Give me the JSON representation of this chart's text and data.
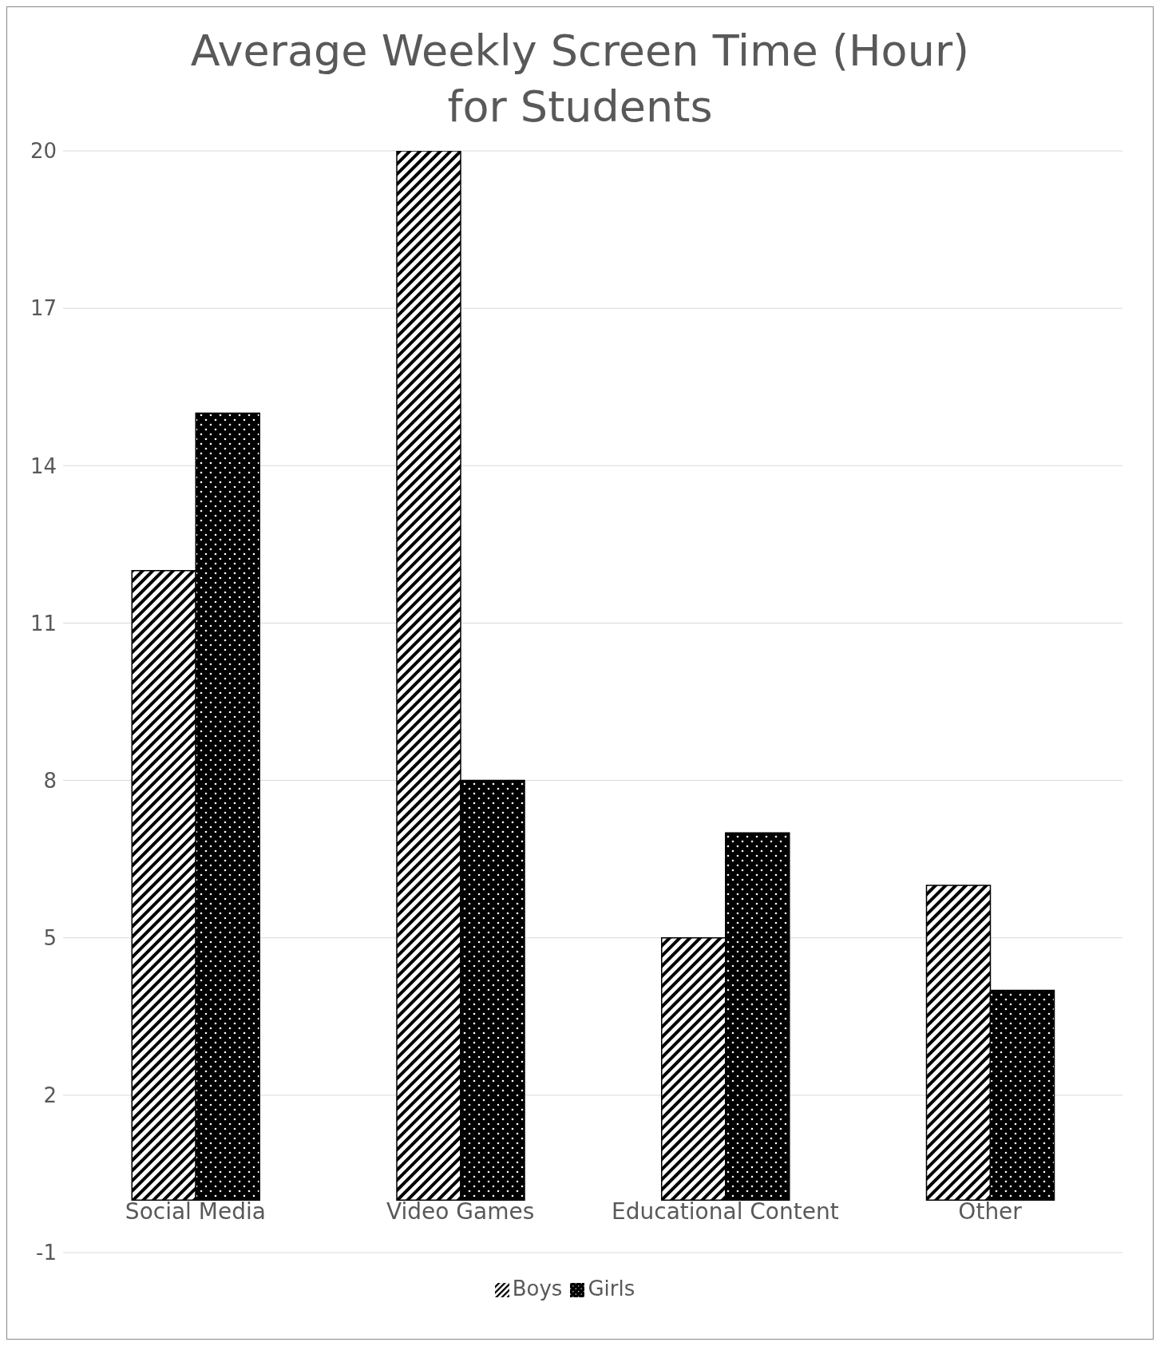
{
  "chart_data": {
    "type": "bar",
    "title": "Average Weekly Screen Time (Hour) for Students",
    "categories": [
      "Social Media",
      "Video Games",
      "Educational Content",
      "Other"
    ],
    "series": [
      {
        "name": "Boys",
        "color": "#000000",
        "values": [
          12,
          20,
          5,
          6
        ]
      },
      {
        "name": "Girls",
        "color": "#000000",
        "values": [
          15,
          8,
          7,
          4
        ]
      }
    ],
    "ylim": [
      -1,
      20
    ],
    "yticks": [
      -1,
      2,
      5,
      8,
      11,
      14,
      17,
      20
    ],
    "grid": "y",
    "legend": "bottom"
  }
}
